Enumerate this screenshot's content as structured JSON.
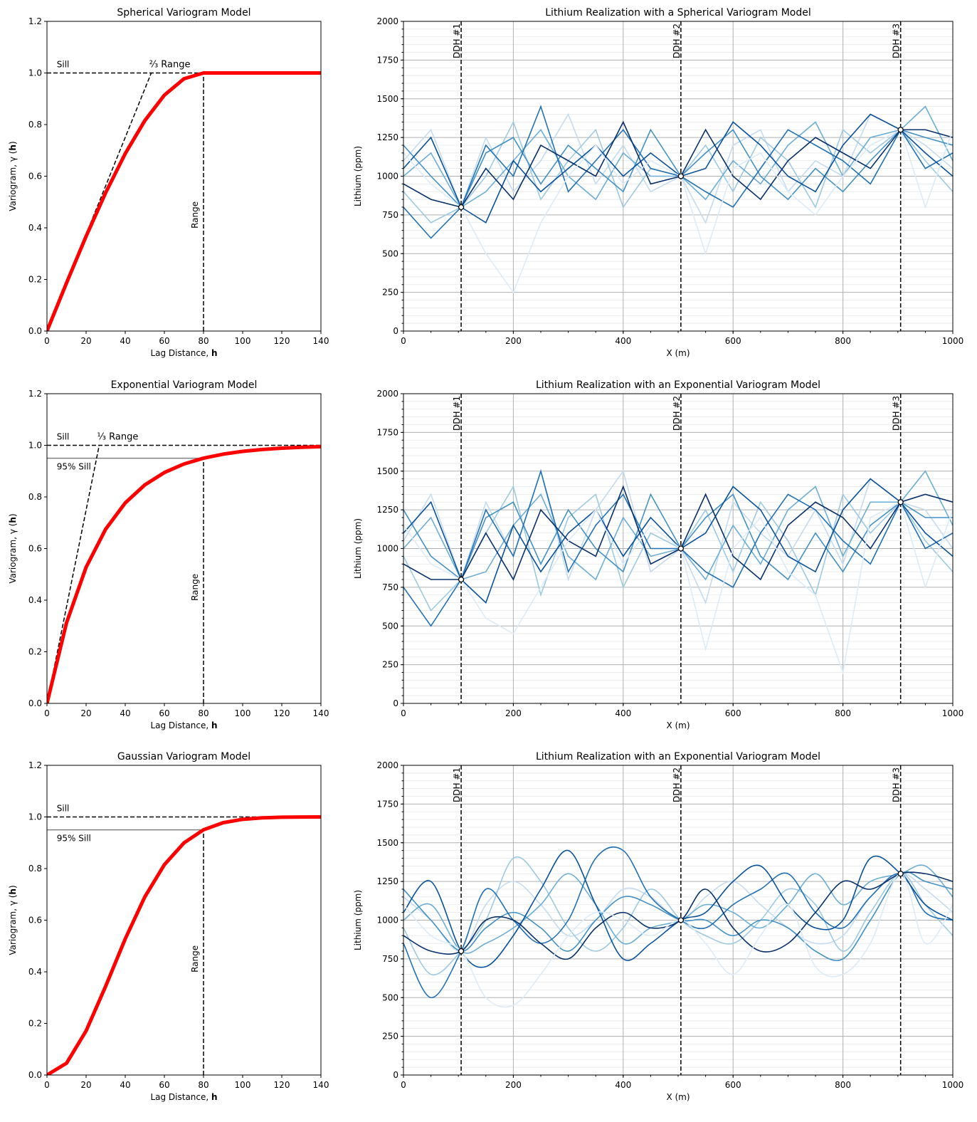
{
  "chart_data": [
    {
      "type": "line",
      "title": "Spherical Variogram Model",
      "xlabel": "Lag Distance, h",
      "ylabel": "Variogram, γ (h)",
      "xlim": [
        0,
        140
      ],
      "ylim": [
        0,
        1.2
      ],
      "xticks": [
        "0",
        "20",
        "40",
        "60",
        "80",
        "100",
        "120",
        "140"
      ],
      "yticks": [
        "0.0",
        "0.2",
        "0.4",
        "0.6",
        "0.8",
        "1.0",
        "1.2"
      ],
      "x": [
        0,
        10,
        20,
        30,
        40,
        50,
        60,
        70,
        80,
        90,
        100,
        110,
        120,
        130,
        140
      ],
      "values": [
        0,
        0.1865,
        0.3672,
        0.5361,
        0.6875,
        0.8154,
        0.9141,
        0.9775,
        1,
        1,
        1,
        1,
        1,
        1,
        1
      ],
      "color": "#ff0000",
      "sill": {
        "value": 1.0,
        "x_end": 100,
        "label": "Sill"
      },
      "tangent": {
        "x_end": 53.3,
        "label": "⅔ Range"
      },
      "range": {
        "value": 80,
        "label": "Range"
      }
    },
    {
      "type": "line",
      "title": "Lithium Realization with a Spherical Variogram Model",
      "xlabel": "X (m)",
      "ylabel": "Lithium (ppm)",
      "xlim": [
        0,
        1000
      ],
      "ylim": [
        0,
        2000
      ],
      "xticks": [
        "0",
        "200",
        "400",
        "600",
        "800",
        "1000"
      ],
      "yticks": [
        "0",
        "250",
        "500",
        "750",
        "1000",
        "1250",
        "1500",
        "1750",
        "2000"
      ],
      "grid": true,
      "x": [
        0,
        50,
        105,
        150,
        200,
        250,
        300,
        350,
        400,
        450,
        505,
        550,
        600,
        650,
        700,
        750,
        800,
        850,
        905,
        950,
        1000
      ],
      "series": [
        {
          "values": [
            1100,
            1300,
            800,
            1250,
            900,
            1100,
            1400,
            950,
            1200,
            900,
            1000,
            700,
            1200,
            1300,
            900,
            1100,
            1000,
            1400,
            1300,
            1200,
            1050
          ]
        },
        {
          "values": [
            900,
            700,
            800,
            1000,
            1350,
            850,
            1100,
            1300,
            800,
            1050,
            1000,
            1200,
            900,
            1250,
            1100,
            800,
            1300,
            1150,
            1300,
            1100,
            900
          ]
        },
        {
          "values": [
            1000,
            1150,
            800,
            900,
            1100,
            1300,
            1000,
            850,
            1150,
            1000,
            1000,
            850,
            1100,
            950,
            1200,
            1350,
            1000,
            1250,
            1300,
            1450,
            1100
          ]
        },
        {
          "values": [
            1200,
            1000,
            800,
            1150,
            1250,
            950,
            1200,
            1050,
            900,
            1300,
            1000,
            1150,
            1300,
            1000,
            850,
            1050,
            900,
            1100,
            1300,
            1250,
            1200
          ]
        },
        {
          "values": [
            800,
            600,
            800,
            1200,
            1000,
            1450,
            900,
            1100,
            1300,
            1050,
            1000,
            900,
            800,
            1050,
            1300,
            1200,
            1100,
            950,
            1300,
            1050,
            1150
          ]
        },
        {
          "values": [
            1050,
            1250,
            800,
            700,
            1100,
            900,
            1050,
            1200,
            1000,
            1150,
            1000,
            1050,
            1350,
            1200,
            1000,
            900,
            1200,
            1400,
            1300,
            1150,
            1000
          ]
        },
        {
          "values": [
            950,
            850,
            800,
            1050,
            850,
            1200,
            1100,
            1000,
            1350,
            950,
            1000,
            1300,
            1000,
            850,
            1100,
            1250,
            1150,
            1050,
            1300,
            1300,
            1250
          ]
        },
        {
          "values": [
            1150,
            950,
            800,
            500,
            250,
            700,
            1000,
            1200,
            950,
            1100,
            1000,
            500,
            1050,
            1150,
            900,
            750,
            1000,
            1200,
            1300,
            800,
            1300
          ]
        }
      ],
      "colormap": [
        "#c6dbef",
        "#9ecae1",
        "#6baed6",
        "#4292c6",
        "#2171b5",
        "#08519c",
        "#08306b",
        "#deebf7"
      ],
      "drillholes": [
        {
          "label": "DDH #1",
          "x": 105,
          "value": 800
        },
        {
          "label": "DDH #2",
          "x": 505,
          "value": 1000
        },
        {
          "label": "DDH #3",
          "x": 905,
          "value": 1300
        }
      ]
    },
    {
      "type": "line",
      "title": "Exponential Variogram Model",
      "xlabel": "Lag Distance, h",
      "ylabel": "Variogram, γ (h)",
      "xlim": [
        0,
        140
      ],
      "ylim": [
        0,
        1.2
      ],
      "xticks": [
        "0",
        "20",
        "40",
        "60",
        "80",
        "100",
        "120",
        "140"
      ],
      "yticks": [
        "0.0",
        "0.2",
        "0.4",
        "0.6",
        "0.8",
        "1.0",
        "1.2"
      ],
      "x": [
        0,
        10,
        20,
        30,
        40,
        50,
        60,
        70,
        80,
        90,
        100,
        110,
        120,
        130,
        140
      ],
      "values": [
        0,
        0.3127,
        0.5276,
        0.6753,
        0.7769,
        0.8466,
        0.8946,
        0.9276,
        0.9502,
        0.9658,
        0.9765,
        0.9838,
        0.9889,
        0.9924,
        0.9948
      ],
      "color": "#ff0000",
      "sill": {
        "value": 1.0,
        "x_end": 140,
        "label": "Sill"
      },
      "sill95": {
        "value": 0.95,
        "label": "95% Sill"
      },
      "tangent": {
        "x_end": 26.7,
        "label": "⅓ Range"
      },
      "range": {
        "value": 80,
        "label": "Range"
      }
    },
    {
      "type": "line",
      "title": "Lithium Realization with an Exponential Variogram Model",
      "xlabel": "X (m)",
      "ylabel": "Lithium (ppm)",
      "xlim": [
        0,
        1000
      ],
      "ylim": [
        0,
        2000
      ],
      "xticks": [
        "0",
        "200",
        "400",
        "600",
        "800",
        "1000"
      ],
      "yticks": [
        "0",
        "250",
        "500",
        "750",
        "1000",
        "1250",
        "1500",
        "1750",
        "2000"
      ],
      "grid": true,
      "x": [
        0,
        50,
        105,
        150,
        200,
        250,
        300,
        350,
        400,
        450,
        505,
        550,
        600,
        650,
        700,
        750,
        800,
        850,
        905,
        950,
        1000
      ],
      "series": [
        {
          "values": [
            1050,
            1350,
            800,
            1300,
            950,
            1500,
            800,
            1250,
            1500,
            850,
            1000,
            650,
            1300,
            1100,
            950,
            1250,
            900,
            1450,
            1300,
            1250,
            1000
          ]
        },
        {
          "values": [
            950,
            600,
            800,
            1100,
            1400,
            700,
            1200,
            1350,
            750,
            1100,
            1000,
            1250,
            850,
            1300,
            1050,
            700,
            1350,
            1100,
            1300,
            1050,
            850
          ]
        },
        {
          "values": [
            1000,
            1200,
            800,
            850,
            1150,
            1350,
            950,
            800,
            1200,
            950,
            1000,
            800,
            1150,
            900,
            1250,
            1400,
            950,
            1300,
            1300,
            1500,
            1150
          ]
        },
        {
          "values": [
            1250,
            950,
            800,
            1200,
            1300,
            900,
            1250,
            1000,
            850,
            1350,
            1000,
            1200,
            1350,
            950,
            800,
            1100,
            850,
            1150,
            1300,
            1200,
            1200
          ]
        },
        {
          "values": [
            750,
            500,
            800,
            1250,
            950,
            1500,
            850,
            1150,
            1350,
            1000,
            1000,
            850,
            750,
            1100,
            1350,
            1250,
            1050,
            900,
            1300,
            1000,
            1100
          ]
        },
        {
          "values": [
            1100,
            1300,
            800,
            650,
            1150,
            850,
            1100,
            1250,
            950,
            1200,
            1000,
            1100,
            1400,
            1250,
            950,
            850,
            1250,
            1450,
            1300,
            1100,
            950
          ]
        },
        {
          "values": [
            900,
            800,
            800,
            1100,
            800,
            1250,
            1050,
            950,
            1400,
            900,
            1000,
            1350,
            950,
            800,
            1150,
            1300,
            1200,
            1000,
            1300,
            1350,
            1300
          ]
        },
        {
          "values": [
            1150,
            900,
            800,
            550,
            450,
            750,
            1050,
            1250,
            900,
            1150,
            1000,
            350,
            1000,
            1200,
            850,
            700,
            200,
            1200,
            1300,
            750,
            1250
          ]
        }
      ],
      "colormap": [
        "#c6dbef",
        "#9ecae1",
        "#6baed6",
        "#4292c6",
        "#2171b5",
        "#08519c",
        "#08306b",
        "#deebf7"
      ],
      "drillholes": [
        {
          "label": "DDH #1",
          "x": 105,
          "value": 800
        },
        {
          "label": "DDH #2",
          "x": 505,
          "value": 1000
        },
        {
          "label": "DDH #3",
          "x": 905,
          "value": 1300
        }
      ]
    },
    {
      "type": "line",
      "title": "Gaussian Variogram Model",
      "xlabel": "Lag Distance, h",
      "ylabel": "Variogram, γ (h)",
      "xlim": [
        0,
        140
      ],
      "ylim": [
        0,
        1.2
      ],
      "xticks": [
        "0",
        "20",
        "40",
        "60",
        "80",
        "100",
        "120",
        "140"
      ],
      "yticks": [
        "0.0",
        "0.2",
        "0.4",
        "0.6",
        "0.8",
        "1.0",
        "1.2"
      ],
      "x": [
        0,
        10,
        20,
        30,
        40,
        50,
        60,
        70,
        80,
        90,
        100,
        110,
        120,
        130,
        140
      ],
      "values": [
        0,
        0.0458,
        0.171,
        0.3442,
        0.5276,
        0.6902,
        0.815,
        0.8994,
        0.9502,
        0.9776,
        0.9908,
        0.9966,
        0.9988,
        0.9996,
        0.9999
      ],
      "color": "#ff0000",
      "sill": {
        "value": 1.0,
        "x_end": 140,
        "label": "Sill"
      },
      "sill95": {
        "value": 0.95,
        "label": "95% Sill"
      },
      "range": {
        "value": 80,
        "label": "Range"
      }
    },
    {
      "type": "line",
      "title": "Lithium Realization with an Exponential Variogram Model",
      "xlabel": "X (m)",
      "ylabel": "Lithium (ppm)",
      "xlim": [
        0,
        1000
      ],
      "ylim": [
        0,
        2000
      ],
      "xticks": [
        "0",
        "200",
        "400",
        "600",
        "800",
        "1000"
      ],
      "yticks": [
        "0",
        "250",
        "500",
        "750",
        "1000",
        "1250",
        "1500",
        "1750",
        "2000"
      ],
      "grid": true,
      "smooth": true,
      "x": [
        0,
        50,
        105,
        150,
        200,
        250,
        300,
        350,
        400,
        450,
        505,
        550,
        600,
        650,
        700,
        750,
        800,
        850,
        905,
        950,
        1000
      ],
      "series": [
        {
          "values": [
            1150,
            1000,
            800,
            1100,
            1250,
            1100,
            900,
            1000,
            1200,
            1150,
            1000,
            1150,
            1250,
            1100,
            950,
            850,
            900,
            1150,
            1300,
            1200,
            1050
          ]
        },
        {
          "values": [
            950,
            650,
            800,
            1000,
            1400,
            1250,
            950,
            800,
            950,
            1200,
            1000,
            900,
            850,
            1000,
            1200,
            1100,
            800,
            1050,
            1300,
            1100,
            900
          ]
        },
        {
          "values": [
            1000,
            1100,
            800,
            850,
            950,
            1100,
            1300,
            1100,
            850,
            950,
            1000,
            1100,
            1050,
            950,
            1100,
            1300,
            1100,
            1250,
            1300,
            1350,
            1150
          ]
        },
        {
          "values": [
            1200,
            1000,
            800,
            950,
            1050,
            950,
            800,
            1000,
            1150,
            1100,
            1000,
            1000,
            900,
            1000,
            950,
            800,
            750,
            1000,
            1300,
            1250,
            1200
          ]
        },
        {
          "values": [
            850,
            500,
            800,
            1200,
            1000,
            850,
            1000,
            1400,
            1450,
            1150,
            1000,
            950,
            1100,
            1200,
            1300,
            1050,
            950,
            1150,
            1300,
            1050,
            1000
          ]
        },
        {
          "values": [
            1050,
            1250,
            800,
            700,
            900,
            1200,
            1450,
            1100,
            750,
            850,
            1000,
            1050,
            1250,
            1350,
            1100,
            950,
            1000,
            1400,
            1300,
            1100,
            1000
          ]
        },
        {
          "values": [
            900,
            800,
            800,
            1000,
            1000,
            850,
            750,
            950,
            1050,
            950,
            1000,
            1200,
            950,
            800,
            850,
            1050,
            1250,
            1200,
            1300,
            1300,
            1250
          ]
        },
        {
          "values": [
            1100,
            900,
            800,
            500,
            450,
            650,
            900,
            1050,
            1000,
            900,
            1000,
            850,
            650,
            900,
            1100,
            700,
            650,
            850,
            1300,
            850,
            1100
          ]
        }
      ],
      "colormap": [
        "#c6dbef",
        "#9ecae1",
        "#6baed6",
        "#4292c6",
        "#2171b5",
        "#08519c",
        "#08306b",
        "#deebf7"
      ],
      "drillholes": [
        {
          "label": "DDH #1",
          "x": 105,
          "value": 800
        },
        {
          "label": "DDH #2",
          "x": 505,
          "value": 1000
        },
        {
          "label": "DDH #3",
          "x": 905,
          "value": 1300
        }
      ]
    }
  ]
}
